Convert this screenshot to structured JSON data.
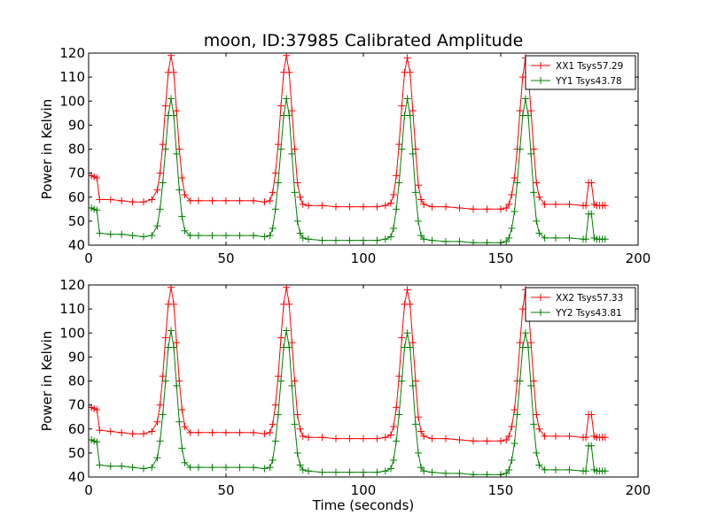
{
  "chart_data": [
    {
      "type": "line",
      "title": "moon, ID:37985 Calibrated Amplitude",
      "xlabel": "",
      "ylabel": "Power in Kelvin",
      "xlim": [
        0,
        200
      ],
      "ylim": [
        40,
        120
      ],
      "xticks": [
        "0",
        "50",
        "100",
        "150",
        "200"
      ],
      "yticks": [
        "40",
        "50",
        "60",
        "70",
        "80",
        "90",
        "100",
        "110",
        "120"
      ],
      "grid": false,
      "legend_position": "top-right",
      "series": [
        {
          "name": "XX1 Tsys57.29",
          "color": "#ff0000",
          "x": [
            0,
            1,
            2,
            3,
            4,
            8,
            12,
            16,
            20,
            23,
            25,
            26,
            27,
            28,
            29,
            30,
            31,
            32,
            33,
            34,
            35,
            37,
            40,
            45,
            50,
            55,
            60,
            64,
            66,
            67,
            68,
            69,
            70,
            71,
            72,
            73,
            74,
            75,
            76,
            77,
            78,
            80,
            85,
            90,
            95,
            100,
            105,
            108,
            110,
            111,
            112,
            113,
            114,
            115,
            116,
            117,
            118,
            119,
            120,
            121,
            122,
            125,
            130,
            135,
            140,
            145,
            150,
            152,
            153,
            154,
            155,
            156,
            157,
            158,
            159,
            160,
            161,
            162,
            163,
            164,
            166,
            170,
            175,
            180,
            181,
            182,
            183,
            184,
            185,
            186,
            187,
            188
          ],
          "values": [
            69,
            69,
            68.5,
            68,
            59,
            59,
            58.5,
            58,
            58,
            59,
            63,
            70,
            82,
            98,
            112,
            119,
            112,
            96,
            80,
            68,
            61,
            58.5,
            58.5,
            58.5,
            58.5,
            58.5,
            58.5,
            58,
            58.5,
            62,
            70,
            82,
            98,
            112,
            119,
            112,
            96,
            80,
            66,
            60,
            57,
            56.5,
            56.5,
            56,
            56,
            56,
            56,
            56.5,
            57.5,
            61,
            69,
            82,
            98,
            112,
            118,
            112,
            96,
            80,
            65,
            59,
            57,
            56,
            56,
            55.5,
            55,
            55,
            55,
            55.5,
            57,
            61,
            68,
            80,
            96,
            110,
            118,
            112,
            96,
            80,
            66,
            60,
            57,
            57,
            57,
            56.5,
            56.5,
            66,
            66,
            57,
            56.5,
            56.5,
            56.5,
            56.5
          ]
        },
        {
          "name": "YY1 Tsys43.78",
          "color": "#008000",
          "x": [
            0,
            1,
            2,
            3,
            4,
            8,
            12,
            16,
            20,
            23,
            25,
            26,
            27,
            28,
            29,
            30,
            31,
            32,
            33,
            34,
            35,
            37,
            40,
            45,
            50,
            55,
            60,
            64,
            66,
            67,
            68,
            69,
            70,
            71,
            72,
            73,
            74,
            75,
            76,
            77,
            78,
            80,
            85,
            90,
            95,
            100,
            105,
            108,
            110,
            111,
            112,
            113,
            114,
            115,
            116,
            117,
            118,
            119,
            120,
            121,
            122,
            125,
            130,
            135,
            140,
            145,
            150,
            152,
            153,
            154,
            155,
            156,
            157,
            158,
            159,
            160,
            161,
            162,
            163,
            164,
            166,
            170,
            175,
            180,
            181,
            182,
            183,
            184,
            185,
            186,
            187,
            188
          ],
          "values": [
            55.5,
            55.5,
            55,
            54.5,
            45,
            44.5,
            44.5,
            44,
            43.5,
            44,
            48,
            55,
            66,
            80,
            94,
            101,
            94,
            78,
            63,
            52,
            46,
            44,
            44,
            44,
            44,
            44,
            44,
            43.5,
            44,
            47,
            55,
            66,
            80,
            94,
            101,
            94,
            78,
            62,
            50,
            45,
            43,
            42.5,
            42,
            42,
            42,
            42,
            42,
            42.5,
            43.5,
            47,
            55,
            66,
            80,
            94,
            101,
            94,
            78,
            62,
            50,
            44,
            42.5,
            42,
            41.5,
            41.5,
            41,
            41,
            41,
            41.5,
            43,
            47,
            54,
            66,
            80,
            94,
            101,
            94,
            78,
            62,
            50,
            45,
            43,
            43,
            43,
            42.5,
            42.5,
            53,
            53,
            43,
            42.5,
            42.5,
            42.5,
            42.5
          ]
        }
      ]
    },
    {
      "type": "line",
      "title": "",
      "xlabel": "Time (seconds)",
      "ylabel": "Power in Kelvin",
      "xlim": [
        0,
        200
      ],
      "ylim": [
        40,
        120
      ],
      "xticks": [
        "0",
        "50",
        "100",
        "150",
        "200"
      ],
      "yticks": [
        "40",
        "50",
        "60",
        "70",
        "80",
        "90",
        "100",
        "110",
        "120"
      ],
      "grid": false,
      "legend_position": "top-right",
      "series": [
        {
          "name": "XX2 Tsys57.33",
          "color": "#ff0000",
          "x": [
            0,
            1,
            2,
            3,
            4,
            8,
            12,
            16,
            20,
            23,
            25,
            26,
            27,
            28,
            29,
            30,
            31,
            32,
            33,
            34,
            35,
            37,
            40,
            45,
            50,
            55,
            60,
            64,
            66,
            67,
            68,
            69,
            70,
            71,
            72,
            73,
            74,
            75,
            76,
            77,
            78,
            80,
            85,
            90,
            95,
            100,
            105,
            108,
            110,
            111,
            112,
            113,
            114,
            115,
            116,
            117,
            118,
            119,
            120,
            121,
            122,
            125,
            130,
            135,
            140,
            145,
            150,
            152,
            153,
            154,
            155,
            156,
            157,
            158,
            159,
            160,
            161,
            162,
            163,
            164,
            166,
            170,
            175,
            180,
            181,
            182,
            183,
            184,
            185,
            186,
            187,
            188
          ],
          "values": [
            69,
            69,
            68.5,
            68,
            59.5,
            59,
            58.5,
            58,
            58,
            59,
            63,
            70,
            82,
            98,
            112,
            119,
            112,
            96,
            80,
            68,
            61,
            58.5,
            58.5,
            58.5,
            58.5,
            58.5,
            58.5,
            58,
            58.5,
            62,
            70,
            82,
            98,
            112,
            119,
            112,
            96,
            80,
            66,
            60,
            57,
            56.5,
            56.5,
            56,
            56,
            56,
            56,
            56.5,
            57.5,
            61,
            69,
            82,
            98,
            112,
            118,
            112,
            96,
            80,
            65,
            59,
            57,
            56,
            56,
            55.5,
            55,
            55,
            55,
            55.5,
            57,
            61,
            68,
            80,
            96,
            110,
            118,
            112,
            96,
            80,
            66,
            60,
            57,
            57,
            57,
            56.5,
            56.5,
            66,
            66,
            57,
            56.5,
            56.5,
            56.5,
            56.5
          ]
        },
        {
          "name": "YY2 Tsys43.81",
          "color": "#008000",
          "x": [
            0,
            1,
            2,
            3,
            4,
            8,
            12,
            16,
            20,
            23,
            25,
            26,
            27,
            28,
            29,
            30,
            31,
            32,
            33,
            34,
            35,
            37,
            40,
            45,
            50,
            55,
            60,
            64,
            66,
            67,
            68,
            69,
            70,
            71,
            72,
            73,
            74,
            75,
            76,
            77,
            78,
            80,
            85,
            90,
            95,
            100,
            105,
            108,
            110,
            111,
            112,
            113,
            114,
            115,
            116,
            117,
            118,
            119,
            120,
            121,
            122,
            125,
            130,
            135,
            140,
            145,
            150,
            152,
            153,
            154,
            155,
            156,
            157,
            158,
            159,
            160,
            161,
            162,
            163,
            164,
            166,
            170,
            175,
            180,
            181,
            182,
            183,
            184,
            185,
            186,
            187,
            188
          ],
          "values": [
            55.5,
            55.5,
            55,
            54.5,
            45,
            44.5,
            44.5,
            44,
            43.5,
            44,
            48,
            55,
            66,
            80,
            94,
            101,
            94,
            78,
            63,
            52,
            46,
            44,
            44,
            44,
            44,
            44,
            44,
            43.5,
            44,
            47,
            55,
            66,
            80,
            94,
            101,
            94,
            78,
            62,
            50,
            45,
            43,
            42.5,
            42,
            42,
            42,
            42,
            42,
            42.5,
            43.5,
            47,
            55,
            66,
            80,
            94,
            100,
            94,
            78,
            62,
            50,
            44,
            42.5,
            42,
            41.5,
            41.5,
            41,
            41,
            41,
            41.5,
            43,
            47,
            54,
            66,
            80,
            94,
            100,
            94,
            78,
            62,
            50,
            45,
            43,
            43,
            43,
            42.5,
            42.5,
            53,
            53,
            43,
            42.5,
            42.5,
            42.5,
            42.5
          ]
        }
      ]
    }
  ]
}
